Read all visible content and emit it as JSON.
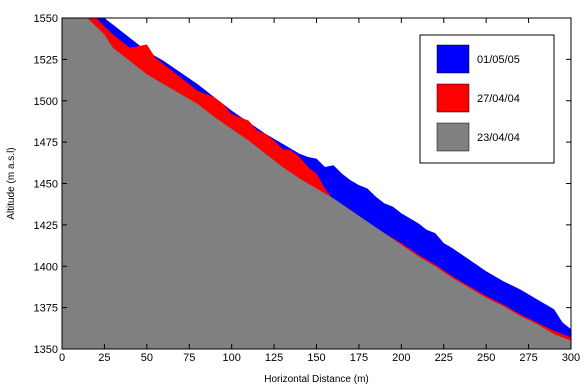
{
  "chart_data": {
    "type": "area",
    "title": "",
    "xlabel": "Horizontal Distance (m)",
    "ylabel": "Altitude (m a.s.l)",
    "xlim": [
      0,
      300
    ],
    "ylim": [
      1350,
      1550
    ],
    "xticks": [
      0,
      25,
      50,
      75,
      100,
      125,
      150,
      175,
      200,
      225,
      250,
      275,
      300
    ],
    "yticks": [
      1350,
      1375,
      1400,
      1425,
      1450,
      1475,
      1500,
      1525,
      1550
    ],
    "grid": false,
    "legend_position": "top-right",
    "series": [
      {
        "name": "23/04/04",
        "color": "#808080",
        "x": [
          0,
          15,
          20,
          25,
          30,
          45,
          50,
          60,
          70,
          80,
          90,
          100,
          110,
          120,
          125,
          130,
          140,
          150,
          160,
          170,
          180,
          190,
          200,
          210,
          220,
          230,
          240,
          250,
          260,
          270,
          280,
          290,
          300
        ],
        "y": [
          1550,
          1550,
          1545,
          1540,
          1532,
          1520,
          1516,
          1510,
          1504,
          1498,
          1490,
          1483,
          1476,
          1468,
          1464,
          1460,
          1453,
          1447,
          1441,
          1434,
          1427,
          1420,
          1413,
          1406,
          1400,
          1393,
          1387,
          1381,
          1376,
          1370,
          1365,
          1359,
          1355
        ]
      },
      {
        "name": "27/04/04",
        "color": "#ff0000",
        "x": [
          0,
          15,
          20,
          25,
          30,
          40,
          45,
          50,
          55,
          60,
          70,
          80,
          90,
          95,
          100,
          110,
          115,
          120,
          125,
          130,
          135,
          140,
          145,
          150,
          155,
          160,
          170,
          180,
          190,
          200,
          210,
          220,
          230,
          240,
          250,
          260,
          270,
          280,
          290,
          300
        ],
        "y": [
          1550,
          1550,
          1550,
          1545,
          1540,
          1532,
          1533,
          1534,
          1526,
          1522,
          1514,
          1506,
          1502,
          1498,
          1492,
          1488,
          1482,
          1480,
          1476,
          1471,
          1470,
          1466,
          1460,
          1456,
          1447,
          1440,
          1433,
          1426,
          1420,
          1414,
          1407,
          1401,
          1394,
          1388,
          1382,
          1377,
          1371,
          1366,
          1361,
          1357
        ]
      },
      {
        "name": "01/05/05",
        "color": "#0000ff",
        "x": [
          0,
          15,
          20,
          25,
          30,
          35,
          40,
          50,
          60,
          70,
          80,
          90,
          100,
          110,
          120,
          130,
          140,
          145,
          150,
          155,
          160,
          165,
          170,
          175,
          180,
          185,
          190,
          195,
          200,
          205,
          210,
          215,
          220,
          225,
          230,
          240,
          250,
          260,
          270,
          280,
          290,
          295,
          300
        ],
        "y": [
          1550,
          1550,
          1550,
          1550,
          1546,
          1542,
          1538,
          1530,
          1524,
          1517,
          1510,
          1502,
          1494,
          1487,
          1480,
          1474,
          1468,
          1466,
          1465,
          1460,
          1461,
          1456,
          1452,
          1449,
          1447,
          1442,
          1438,
          1436,
          1432,
          1429,
          1426,
          1422,
          1420,
          1414,
          1411,
          1404,
          1397,
          1391,
          1386,
          1380,
          1374,
          1366,
          1362
        ]
      }
    ],
    "legend": [
      {
        "label": "01/05/05",
        "color": "#0000ff"
      },
      {
        "label": "27/04/04",
        "color": "#ff0000"
      },
      {
        "label": "23/04/04",
        "color": "#808080"
      }
    ]
  }
}
